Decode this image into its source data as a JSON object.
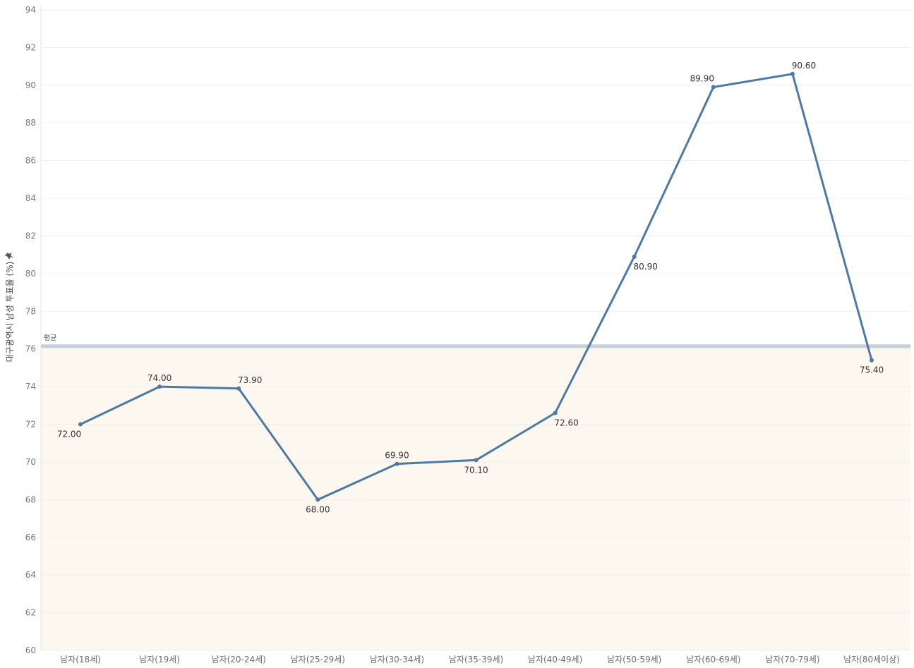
{
  "chart_data": {
    "type": "line",
    "ylabel": "대구광역시 남성 투표율 (%)",
    "ylabel_icon": "pin-icon",
    "categories": [
      "남자(18세)",
      "남자(19세)",
      "남자(20-24세)",
      "남자(25-29세)",
      "남자(30-34세)",
      "남자(35-39세)",
      "남자(40-49세)",
      "남자(50-59세)",
      "남자(60-69세)",
      "남자(70-79세)",
      "남자(80세이상)"
    ],
    "values": [
      72.0,
      74.0,
      73.9,
      68.0,
      69.9,
      70.1,
      72.6,
      80.9,
      89.9,
      90.6,
      75.4
    ],
    "data_labels": [
      "72.00",
      "74.00",
      "73.90",
      "68.00",
      "69.90",
      "70.10",
      "72.60",
      "80.90",
      "89.90",
      "90.60",
      "75.40"
    ],
    "ylim": [
      60,
      94
    ],
    "yticks": [
      60,
      62,
      64,
      66,
      68,
      70,
      72,
      74,
      76,
      78,
      80,
      82,
      84,
      86,
      88,
      90,
      92,
      94
    ],
    "grid": true,
    "reference_line": {
      "label": "평균",
      "value": 76.15
    },
    "colors": {
      "line": "#4e79a7",
      "band": "#fdf8ef",
      "ref_line": "#c5d0d9",
      "grid": "#efefef"
    }
  }
}
